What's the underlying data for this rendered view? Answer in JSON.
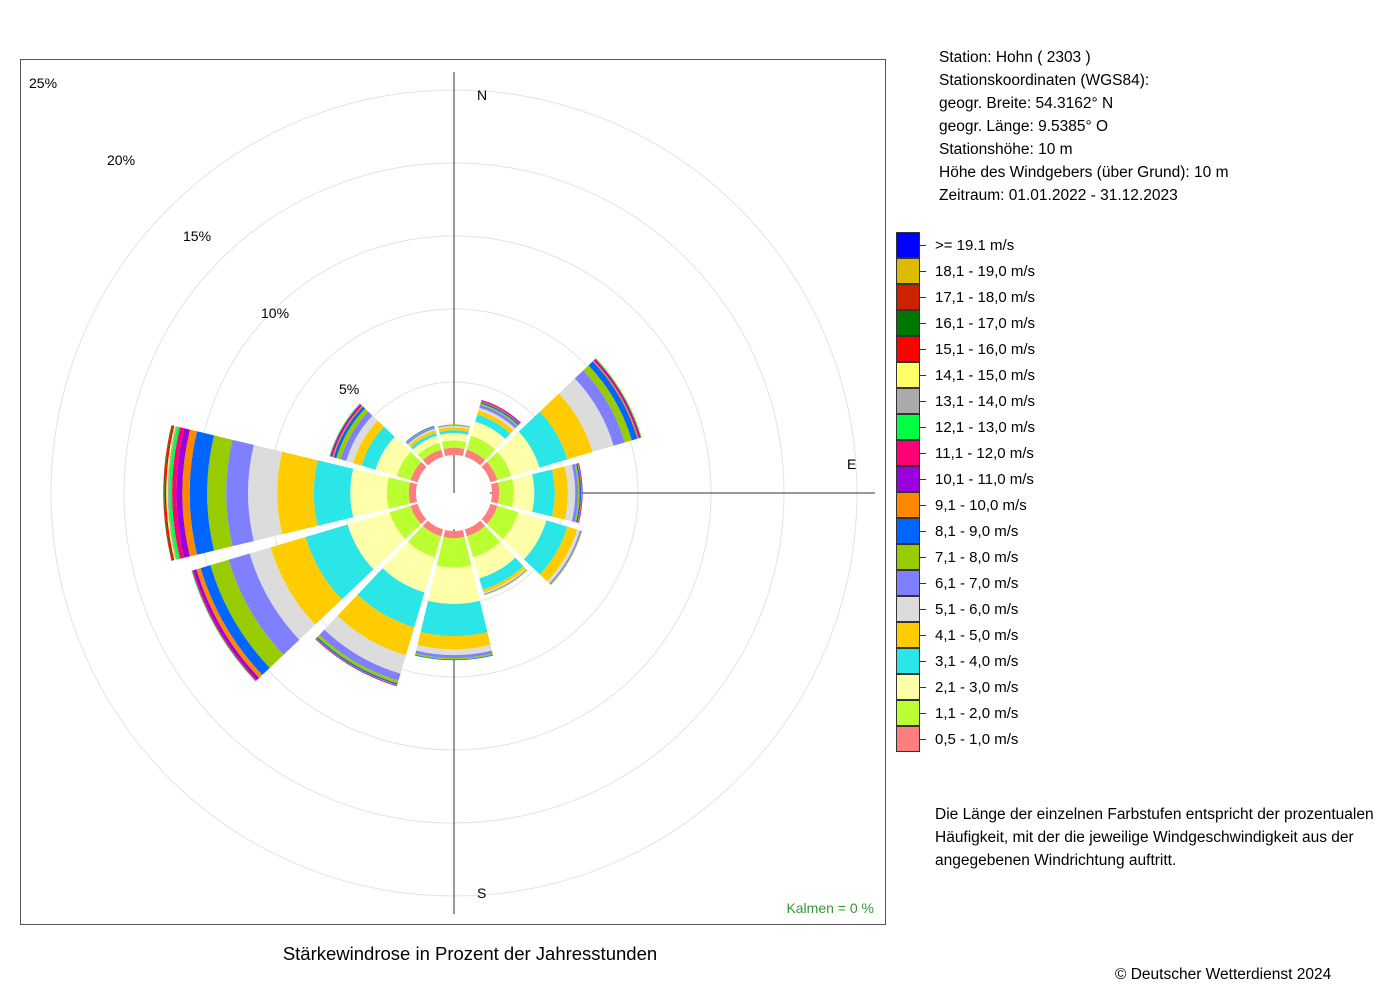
{
  "chart_data": {
    "type": "windrose",
    "title": "Stärkewindrose in Prozent der Jahresstunden",
    "radial_max": 25,
    "radial_ticks": [
      5,
      10,
      15,
      20,
      25
    ],
    "radial_tick_labels": [
      "5%",
      "10%",
      "15%",
      "20%",
      "25%"
    ],
    "direction_labels": [
      "N",
      "E",
      "S"
    ],
    "calm_text": "Kalmen  =  0 %",
    "sector_width_deg": 30,
    "sector_angles_deg": [
      0,
      30,
      60,
      90,
      120,
      150,
      180,
      210,
      240,
      270,
      300,
      330
    ],
    "speed_classes": [
      {
        "label": "0,5 - 1,0 m/s",
        "color": "#FF7F7F"
      },
      {
        "label": "1,1 - 2,0 m/s",
        "color": "#BBFF33"
      },
      {
        "label": "2,1 - 3,0 m/s",
        "color": "#FFFFAA"
      },
      {
        "label": "3,1 - 4,0 m/s",
        "color": "#2BE6E6"
      },
      {
        "label": "4,1 - 5,0 m/s",
        "color": "#FFCC00"
      },
      {
        "label": "5,1 - 6,0 m/s",
        "color": "#DCDCDC"
      },
      {
        "label": "6,1 - 7,0 m/s",
        "color": "#8080FF"
      },
      {
        "label": "7,1 - 8,0 m/s",
        "color": "#99CC00"
      },
      {
        "label": "8,1 - 9,0 m/s",
        "color": "#0066FF"
      },
      {
        "label": "9,1 - 10,0 m/s",
        "color": "#FF8800"
      },
      {
        "label": "10,1 - 11,0 m/s",
        "color": "#9900DD"
      },
      {
        "label": "11,1 - 12,0 m/s",
        "color": "#FF0077"
      },
      {
        "label": "12,1 - 13,0 m/s",
        "color": "#00FF44"
      },
      {
        "label": "13,1 - 14,0 m/s",
        "color": "#AAAAAA"
      },
      {
        "label": "14,1 - 15,0 m/s",
        "color": "#FFFF66"
      },
      {
        "label": "15,1 - 16,0 m/s",
        "color": "#FF0000"
      },
      {
        "label": "16,1 - 17,0 m/s",
        "color": "#007700"
      },
      {
        "label": "17,1 - 18,0 m/s",
        "color": "#CC2200"
      },
      {
        "label": "18,1 - 19,0 m/s",
        "color": "#DDBB00"
      },
      {
        "label": ">= 19.1 m/s",
        "color": "#0000FF"
      }
    ],
    "sectors": [
      {
        "direction": 0,
        "values": [
          0.5,
          0.5,
          0.5,
          0.2,
          0.2,
          0.1,
          0.05,
          0.05,
          0.0,
          0.0,
          0.0,
          0.0,
          0.0,
          0.0,
          0.0,
          0.0,
          0.0,
          0.0,
          0.0,
          0.0
        ]
      },
      {
        "direction": 30,
        "values": [
          0.5,
          1.0,
          1.0,
          0.5,
          0.3,
          0.2,
          0.2,
          0.1,
          0.1,
          0.05,
          0.05,
          0.05,
          0.0,
          0.0,
          0.0,
          0.0,
          0.0,
          0.0,
          0.0,
          0.0
        ]
      },
      {
        "direction": 60,
        "values": [
          0.5,
          1.0,
          2.0,
          2.0,
          1.8,
          1.5,
          0.8,
          0.5,
          0.4,
          0.1,
          0.1,
          0.05,
          0.05,
          0.0,
          0.05,
          0.0,
          0.0,
          0.0,
          0.0,
          0.0
        ]
      },
      {
        "direction": 90,
        "values": [
          0.5,
          1.0,
          1.4,
          1.4,
          0.9,
          0.5,
          0.2,
          0.1,
          0.1,
          0.05,
          0.05,
          0.0,
          0.0,
          0.0,
          0.0,
          0.0,
          0.0,
          0.0,
          0.0,
          0.0
        ]
      },
      {
        "direction": 120,
        "values": [
          0.5,
          1.5,
          2.0,
          1.5,
          0.7,
          0.2,
          0.1,
          0.05,
          0.0,
          0.0,
          0.0,
          0.0,
          0.0,
          0.0,
          0.0,
          0.0,
          0.0,
          0.0,
          0.0,
          0.0
        ]
      },
      {
        "direction": 150,
        "values": [
          0.5,
          1.5,
          1.5,
          0.8,
          0.2,
          0.1,
          0.05,
          0.05,
          0.0,
          0.0,
          0.0,
          0.0,
          0.0,
          0.0,
          0.0,
          0.0,
          0.0,
          0.0,
          0.0,
          0.0
        ]
      },
      {
        "direction": 180,
        "values": [
          0.5,
          2.0,
          2.5,
          2.2,
          0.9,
          0.4,
          0.2,
          0.1,
          0.05,
          0.0,
          0.0,
          0.0,
          0.0,
          0.0,
          0.0,
          0.0,
          0.0,
          0.0,
          0.0,
          0.0
        ]
      },
      {
        "direction": 210,
        "values": [
          0.5,
          1.5,
          2.5,
          2.5,
          2.0,
          1.3,
          0.5,
          0.2,
          0.1,
          0.05,
          0.05,
          0.0,
          0.0,
          0.0,
          0.0,
          0.0,
          0.0,
          0.0,
          0.0,
          0.0
        ]
      },
      {
        "direction": 240,
        "values": [
          0.5,
          1.5,
          3.0,
          3.0,
          2.5,
          1.5,
          1.5,
          1.3,
          0.7,
          0.3,
          0.2,
          0.1,
          0.05,
          0.0,
          0.0,
          0.0,
          0.0,
          0.0,
          0.0,
          0.0
        ]
      },
      {
        "direction": 270,
        "values": [
          0.5,
          1.5,
          2.5,
          2.5,
          2.5,
          2.0,
          1.5,
          1.3,
          1.2,
          0.5,
          0.4,
          0.3,
          0.2,
          0.1,
          0.1,
          0.1,
          0.05,
          0.05,
          0.0,
          0.0
        ]
      },
      {
        "direction": 300,
        "values": [
          0.5,
          1.0,
          1.5,
          1.0,
          0.6,
          0.5,
          0.4,
          0.3,
          0.2,
          0.1,
          0.1,
          0.05,
          0.05,
          0.0,
          0.0,
          0.0,
          0.0,
          0.0,
          0.0,
          0.0
        ]
      },
      {
        "direction": 330,
        "values": [
          0.5,
          0.5,
          0.5,
          0.2,
          0.2,
          0.1,
          0.1,
          0.05,
          0.05,
          0.0,
          0.0,
          0.0,
          0.0,
          0.0,
          0.0,
          0.0,
          0.0,
          0.0,
          0.0,
          0.0
        ]
      }
    ]
  },
  "station_info": [
    "Station:  Hohn  ( 2303 )",
    "Stationskoordinaten (WGS84):",
    "geogr. Breite: 54.3162° N",
    "geogr. Länge:   9.5385° O",
    "Stationshöhe: 10 m",
    "Höhe des Windgebers (über Grund): 10 m",
    "Zeitraum: 01.01.2022 - 31.12.2023"
  ],
  "description": [
    "Die Länge der einzelnen Farbstufen entspricht der prozentualen",
    "Häufigkeit, mit der die jeweilige Windgeschwindigkeit aus der",
    "angegebenen Windrichtung auftritt."
  ],
  "copyright": "© Deutscher Wetterdienst  2024"
}
